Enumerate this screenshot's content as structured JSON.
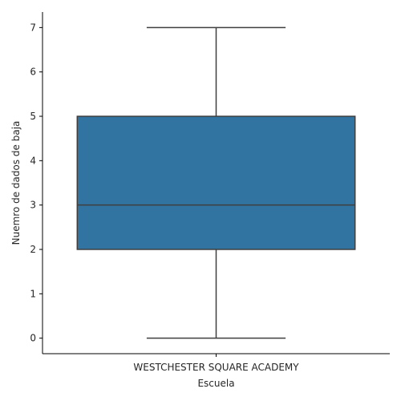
{
  "chart_data": {
    "type": "box",
    "title": "",
    "xlabel": "Escuela",
    "ylabel": "Nuemro de dados de baja",
    "categories": [
      "WESTCHESTER SQUARE ACADEMY"
    ],
    "boxes": [
      {
        "category": "WESTCHESTER SQUARE ACADEMY",
        "min": 0,
        "q1": 2,
        "median": 3,
        "q3": 5,
        "max": 7
      }
    ],
    "y_ticks": [
      0,
      1,
      2,
      3,
      4,
      5,
      6,
      7
    ],
    "ylim": [
      -0.35,
      7.35
    ],
    "grid": false,
    "legend": "none",
    "box_color": "#3274a1",
    "line_color": "#3f3f3f",
    "axis_color": "#000000"
  }
}
